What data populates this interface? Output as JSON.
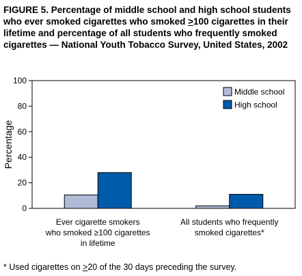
{
  "figure": {
    "title": "FIGURE 5. Percentage of middle school and high school students who ever smoked cigarettes who smoked ≥100 cigarettes in their lifetime and percentage of all students who frequently smoked cigarettes — National Youth Tobacco Survey, United States, 2002",
    "title_parts": {
      "p1": "FIGURE 5. Percentage of middle school and high school students who ever smoked cigarettes who smoked ",
      "ge": ">",
      "p2": "100 cigarettes in their lifetime and percentage of all students who frequently smoked cigarettes — National Youth Tobacco Survey, United States, 2002"
    },
    "footnote_parts": {
      "star": "*",
      "p1": " Used cigarettes on ",
      "ge": ">",
      "p2": "20 of the 30 days preceding the survey."
    }
  },
  "chart_data": {
    "type": "bar",
    "categories": [
      [
        "Ever cigarette smokers",
        "who smoked ≥100 cigarettes",
        "in lifetime"
      ],
      [
        "All students who frequently",
        "smoked cigarettes*"
      ]
    ],
    "series": [
      {
        "name": "Middle school",
        "values": [
          10.5,
          2.0
        ],
        "color": "#b0bbd8"
      },
      {
        "name": "High school",
        "values": [
          28.0,
          11.0
        ],
        "color": "#005baa"
      }
    ],
    "ylabel": "Percentage",
    "xlabel": "",
    "ylim": [
      0,
      100
    ],
    "yticks": [
      0,
      20,
      40,
      60,
      80,
      100
    ],
    "grid": false,
    "legend_position": "top-right"
  }
}
